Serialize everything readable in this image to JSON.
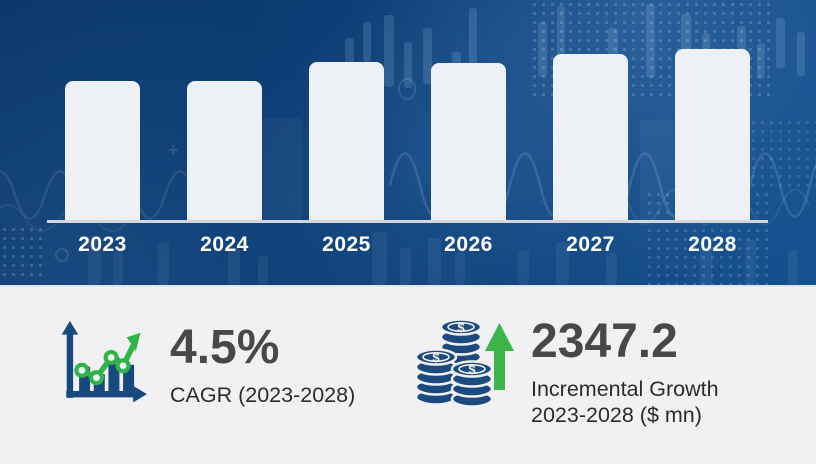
{
  "chart_data": {
    "type": "bar",
    "title": "",
    "xlabel": "",
    "ylabel": "",
    "categories": [
      "2023",
      "2024",
      "2025",
      "2026",
      "2027",
      "2028"
    ],
    "values": [
      139,
      139,
      158,
      157,
      166,
      171
    ],
    "values_note": "bars carry no numeric labels; values are relative bar heights in screen pixels",
    "grid": false,
    "legend": false,
    "bar_color": "#edf0f4",
    "category_label_color": "#ffffff",
    "axis_line_color": "#d3d6da",
    "background_color": "#0d3e76"
  },
  "stats": {
    "cagr": {
      "value": "4.5%",
      "label": "CAGR (2023-2028)",
      "icon": "growth-chart-icon"
    },
    "incremental": {
      "value": "2347.2",
      "label_line1": "Incremental Growth",
      "label_line2": "2023-2028 ($ mn)",
      "icon": "coin-stacks-icon"
    }
  },
  "theme": {
    "hero_background": "#0d3e76",
    "panel_background": "#f1f1f4",
    "stat_value_color": "#48484a",
    "stat_label_color": "#2b2b2d",
    "icon_blue": "#17497e",
    "coin_blue": "#1b4a7e",
    "icon_green": "#2eb449"
  }
}
